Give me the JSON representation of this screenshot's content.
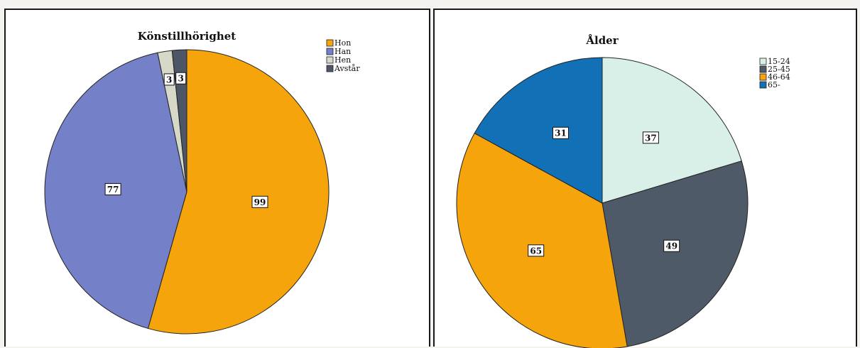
{
  "chart_data": [
    {
      "type": "pie",
      "title": "Könstillhörighet",
      "categories": [
        "Hon",
        "Han",
        "Hen",
        "Avstår"
      ],
      "values": [
        99,
        77,
        3,
        3
      ],
      "colors": [
        "#f5a40b",
        "#7480c7",
        "#d6d9c8",
        "#4c5666"
      ],
      "legend_position": "top-right",
      "data_labels": true
    },
    {
      "type": "pie",
      "title": "Ålder",
      "categories": [
        "15-24",
        "25-45",
        "46-64",
        "65-"
      ],
      "values": [
        37,
        49,
        65,
        31
      ],
      "colors": [
        "#d8f0e8",
        "#4f5a68",
        "#f5a40b",
        "#1170b6"
      ],
      "legend_position": "top-right",
      "data_labels": true
    }
  ]
}
